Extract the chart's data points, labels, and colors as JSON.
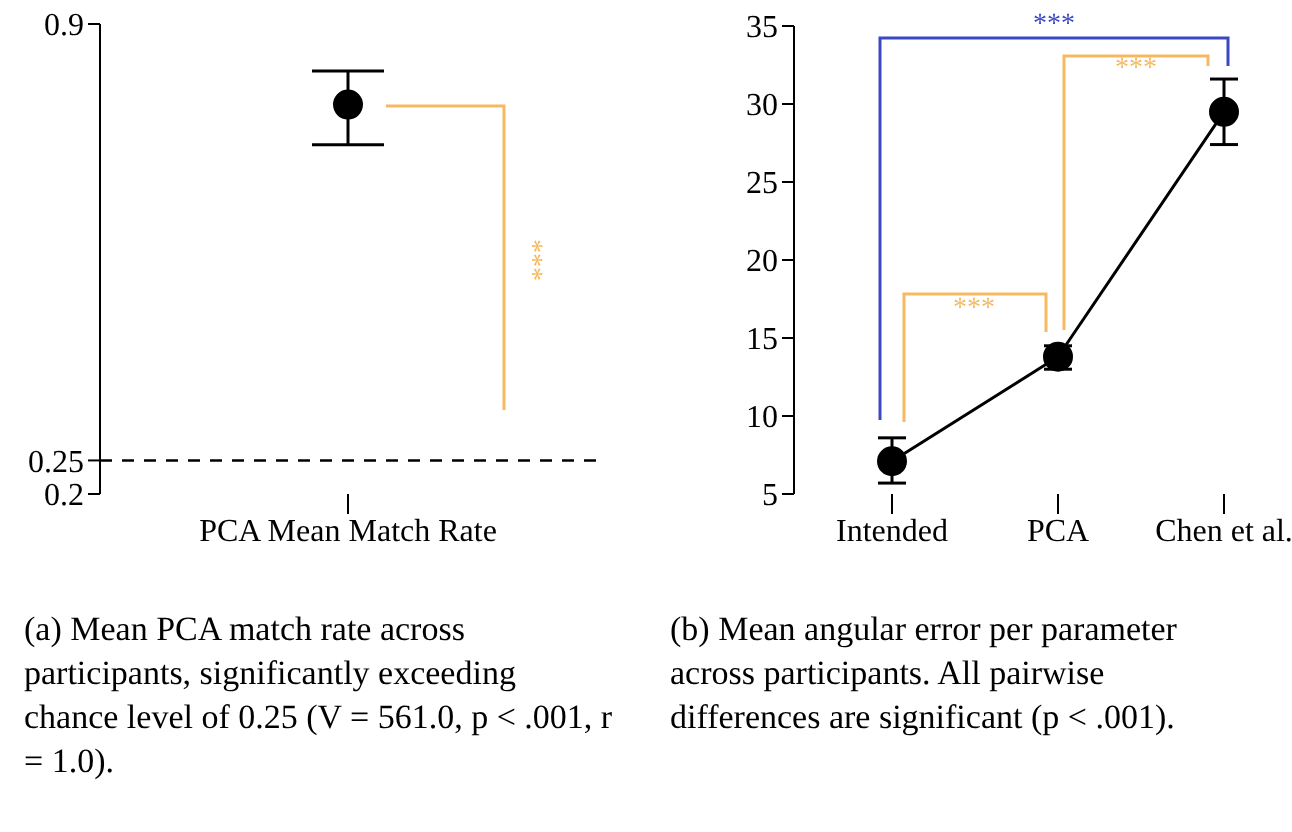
{
  "chart_data": [
    {
      "type": "scatter",
      "categories": [
        "PCA Mean Match Rate"
      ],
      "values": [
        0.78
      ],
      "errors": [
        [
          0.72,
          0.83
        ]
      ],
      "color": "#000000",
      "marker": "circle",
      "ylim": [
        0.2,
        0.9
      ],
      "yticks": [
        0.2,
        0.25,
        0.9
      ],
      "ref_lines": [
        {
          "axis": "y",
          "value": 0.25,
          "line_style": "dashed",
          "color": "#000000"
        }
      ],
      "annotations": [
        "***",
        "(a) Mean PCA match rate across participants, significantly exceeding chance level of 0.25 (V = 561.0, p < .001, r = 1.0)."
      ]
    },
    {
      "type": "line",
      "categories": [
        "Intended",
        "PCA",
        "Chen et al."
      ],
      "values": [
        7.1,
        13.8,
        29.5
      ],
      "errors": [
        [
          5.7,
          8.6
        ],
        [
          13.0,
          14.5
        ],
        [
          27.4,
          31.6
        ]
      ],
      "color": "#000000",
      "marker": "circle",
      "ylim": [
        5,
        35
      ],
      "yticks": [
        5,
        10,
        15,
        20,
        25,
        30,
        35
      ],
      "annotations": [
        "***",
        "***",
        "***",
        "(b) Mean angular error per parameter across participants. All pairwise differences are significant (p < .001)."
      ]
    }
  ]
}
